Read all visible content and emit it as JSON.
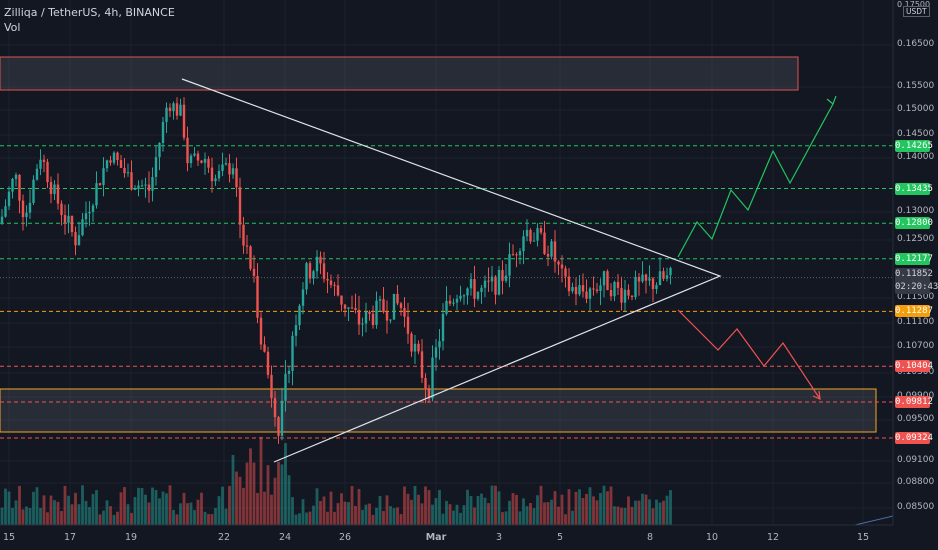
{
  "header": {
    "title": "Zilliqa / TetherUS, 4h, BINANCE",
    "indicator": "Vol"
  },
  "axis": {
    "currency": "USDT",
    "top_label": "0.17500",
    "y_ticks": [
      "0.16500",
      "0.15500",
      "0.15000",
      "0.14500",
      "0.14000",
      "0.13000",
      "0.12500",
      "0.11500",
      "0.11100",
      "0.10700",
      "0.10300",
      "0.09900",
      "0.09500",
      "0.09100",
      "0.08800",
      "0.08500"
    ],
    "x_ticks": [
      "15",
      "17",
      "19",
      "22",
      "24",
      "26",
      "Mar",
      "3",
      "5",
      "8",
      "10",
      "12",
      "15"
    ]
  },
  "price_levels": [
    {
      "value": "0.14265",
      "color": "#22c55e"
    },
    {
      "value": "0.13435",
      "color": "#22c55e"
    },
    {
      "value": "0.12800",
      "color": "#22c55e"
    },
    {
      "value": "0.12177",
      "color": "#22c55e"
    },
    {
      "value": "0.11287",
      "color": "#f59e0b"
    },
    {
      "value": "0.10404",
      "color": "#ef5350"
    },
    {
      "value": "0.09812",
      "color": "#ef5350"
    },
    {
      "value": "0.09324",
      "color": "#ef5350"
    }
  ],
  "current_price": {
    "price": "0.11852",
    "countdown": "02:20:43"
  },
  "colors": {
    "up": "#26a69a",
    "down": "#ef5350",
    "background": "#131722",
    "triangle": "#e0e3eb",
    "bull_path": "#22c55e",
    "bear_path": "#ef5350",
    "resistance_zone": "#e05252",
    "support_zone": "#f5a623"
  },
  "chart_data": {
    "type": "candlestick",
    "symbol": "ZILUSDT",
    "timeframe": "4h",
    "exchange": "BINANCE",
    "y_range": [
      0.085,
      0.175
    ],
    "current_price": 0.11852,
    "horizontal_levels": [
      0.14265,
      0.13435,
      0.128,
      0.12177,
      0.11287,
      0.10404,
      0.09812,
      0.09324
    ],
    "resistance_zone": [
      0.1555,
      0.1625
    ],
    "support_zone": [
      0.095,
      0.0991
    ],
    "pattern": "symmetrical triangle",
    "projections": [
      "bullish breakout",
      "bearish breakdown"
    ]
  }
}
